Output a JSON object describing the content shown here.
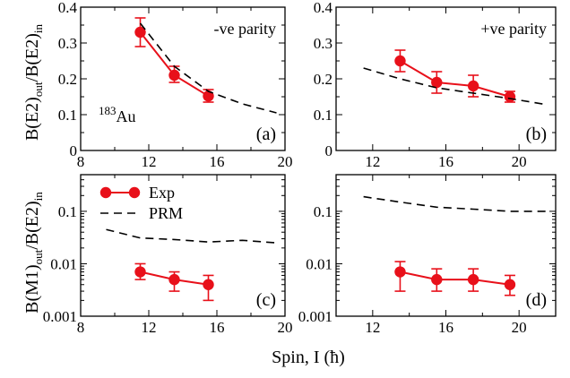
{
  "chart_data": [
    {
      "id": "a",
      "type": "line",
      "panel_label": "(a)",
      "annotation": "-ve parity",
      "nucleus_mass": "183",
      "nucleus_symbol": "Au",
      "xlim": [
        8,
        20
      ],
      "ylim": [
        0,
        0.4
      ],
      "yscale": "linear",
      "xticks": [
        8,
        12,
        16,
        20
      ],
      "xtick_labels": [
        "8",
        "12",
        "16",
        "20"
      ],
      "yticks": [
        0,
        0.1,
        0.2,
        0.3,
        0.4
      ],
      "ytick_labels": [
        "0",
        "0.1",
        "0.2",
        "0.3",
        "0.4"
      ],
      "series": [
        {
          "name": "Exp",
          "style": "marker-line",
          "color": "#e8101a",
          "x": [
            11.5,
            13.5,
            15.5
          ],
          "y": [
            0.33,
            0.21,
            0.152
          ],
          "yerr_low": [
            0.29,
            0.19,
            0.135
          ],
          "yerr_high": [
            0.37,
            0.235,
            0.17
          ]
        },
        {
          "name": "PRM",
          "style": "dashed",
          "color": "#000000",
          "x": [
            11.5,
            13.5,
            15.5,
            17.5,
            19.5
          ],
          "y": [
            0.355,
            0.235,
            0.165,
            0.13,
            0.105
          ]
        }
      ]
    },
    {
      "id": "b",
      "type": "line",
      "panel_label": "(b)",
      "annotation": "+ve parity",
      "xlim": [
        10,
        22
      ],
      "ylim": [
        0,
        0.4
      ],
      "yscale": "linear",
      "xticks": [
        12,
        16,
        20
      ],
      "xtick_labels": [
        "12",
        "16",
        "20"
      ],
      "yticks": [
        0,
        0.1,
        0.2,
        0.3,
        0.4
      ],
      "ytick_labels": [
        "0",
        "0.1",
        "0.2",
        "0.3",
        "0.4"
      ],
      "series": [
        {
          "name": "Exp",
          "style": "marker-line",
          "color": "#e8101a",
          "x": [
            13.5,
            15.5,
            17.5,
            19.5
          ],
          "y": [
            0.25,
            0.19,
            0.18,
            0.15
          ],
          "yerr_low": [
            0.22,
            0.16,
            0.15,
            0.135
          ],
          "yerr_high": [
            0.28,
            0.22,
            0.21,
            0.165
          ]
        },
        {
          "name": "PRM",
          "style": "dashed",
          "color": "#000000",
          "x": [
            11.5,
            13.5,
            15.5,
            17.5,
            19.5,
            21.5
          ],
          "y": [
            0.23,
            0.2,
            0.175,
            0.16,
            0.145,
            0.128
          ]
        }
      ]
    },
    {
      "id": "c",
      "type": "line",
      "panel_label": "(c)",
      "xlim": [
        8,
        20
      ],
      "ylim": [
        0.001,
        0.5
      ],
      "yscale": "log",
      "xticks": [
        8,
        12,
        16,
        20
      ],
      "xtick_labels": [
        "8",
        "12",
        "16",
        "20"
      ],
      "yticks": [
        0.001,
        0.01,
        0.1
      ],
      "ytick_labels": [
        "0.001",
        "0.01",
        "0.1"
      ],
      "legend": {
        "placement": "top-left",
        "entries": [
          "Exp",
          "PRM"
        ]
      },
      "series": [
        {
          "name": "Exp",
          "style": "marker-line",
          "color": "#e8101a",
          "x": [
            11.5,
            13.5,
            15.5
          ],
          "y": [
            0.007,
            0.005,
            0.004
          ],
          "yerr_low": [
            0.005,
            0.003,
            0.002
          ],
          "yerr_high": [
            0.01,
            0.007,
            0.006
          ]
        },
        {
          "name": "PRM",
          "style": "dashed",
          "color": "#000000",
          "x": [
            9.5,
            11.5,
            13.5,
            15.5,
            17.5,
            19.5
          ],
          "y": [
            0.045,
            0.031,
            0.029,
            0.026,
            0.028,
            0.025
          ]
        }
      ]
    },
    {
      "id": "d",
      "type": "line",
      "panel_label": "(d)",
      "xlim": [
        10,
        22
      ],
      "ylim": [
        0.001,
        0.5
      ],
      "yscale": "log",
      "xticks": [
        12,
        16,
        20
      ],
      "xtick_labels": [
        "12",
        "16",
        "20"
      ],
      "yticks": [
        0.001,
        0.01,
        0.1
      ],
      "ytick_labels": [
        "0.001",
        "0.01",
        "0.1"
      ],
      "series": [
        {
          "name": "Exp",
          "style": "marker-line",
          "color": "#e8101a",
          "x": [
            13.5,
            15.5,
            17.5,
            19.5
          ],
          "y": [
            0.007,
            0.005,
            0.005,
            0.004
          ],
          "yerr_low": [
            0.003,
            0.003,
            0.003,
            0.0025
          ],
          "yerr_high": [
            0.011,
            0.008,
            0.008,
            0.006
          ]
        },
        {
          "name": "PRM",
          "style": "dashed",
          "color": "#000000",
          "x": [
            11.5,
            13.5,
            15.5,
            17.5,
            19.5,
            21.5
          ],
          "y": [
            0.19,
            0.15,
            0.12,
            0.11,
            0.1,
            0.1
          ]
        }
      ]
    }
  ],
  "labels": {
    "ylabel_top_main": "B(E2)",
    "ylabel_top_sub1": "out",
    "ylabel_top_mid": "/B(E2)",
    "ylabel_top_sub2": "in",
    "ylabel_bottom_main": "B(M1)",
    "ylabel_bottom_sub1": "out",
    "ylabel_bottom_mid": "/B(E2)",
    "ylabel_bottom_sub2": "in",
    "xlabel": "Spin, I (ħ)"
  },
  "colors": {
    "exp": "#e8101a",
    "prm": "#000000"
  }
}
